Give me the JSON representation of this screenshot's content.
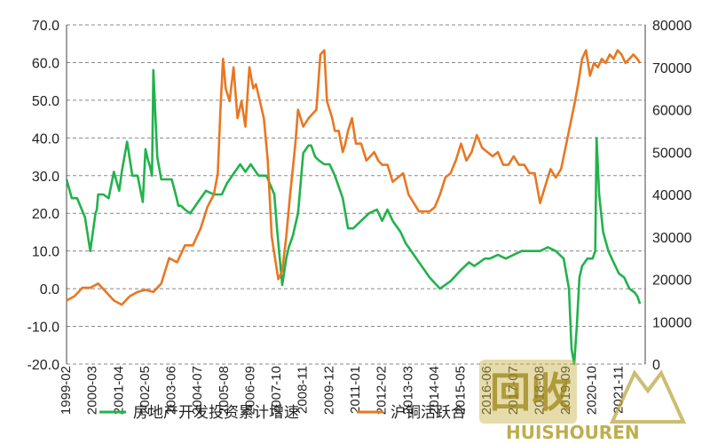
{
  "chart_data": {
    "type": "line",
    "title": "",
    "grid": true,
    "legend_position": "bottom",
    "x_categories": [
      "1999-02",
      "2000-03",
      "2001-04",
      "2002-05",
      "2003-06",
      "2004-07",
      "2005-08",
      "2006-09",
      "2007-10",
      "2008-11",
      "2009-12",
      "2011-01",
      "2012-02",
      "2013-03",
      "2014-04",
      "2015-05",
      "2016-06",
      "2017-07",
      "2018-08",
      "2019-09",
      "2020-10",
      "2021-11"
    ],
    "y_left": {
      "min": -20,
      "max": 70,
      "ticks": [
        "-20.0",
        "-10.0",
        "0.0",
        "10.0",
        "20.0",
        "30.0",
        "40.0",
        "50.0",
        "60.0",
        "70.0"
      ]
    },
    "y_right": {
      "min": 0,
      "max": 80000,
      "ticks": [
        "0",
        "10000",
        "20000",
        "30000",
        "40000",
        "50000",
        "60000",
        "70000",
        "80000"
      ]
    },
    "series": [
      {
        "name": "房地产开发投资累计增速",
        "axis": "left",
        "color": "#22b24c",
        "x": [
          0,
          0.2,
          0.4,
          0.7,
          0.9,
          1.1,
          1.15,
          1.2,
          1.4,
          1.6,
          1.8,
          2.0,
          2.1,
          2.3,
          2.5,
          2.7,
          2.9,
          3.0,
          3.1,
          3.15,
          3.25,
          3.3,
          3.45,
          3.6,
          3.8,
          4.0,
          4.15,
          4.25,
          4.35,
          4.5,
          4.7,
          4.9,
          5.1,
          5.3,
          5.6,
          5.9,
          6.1,
          6.3,
          6.6,
          6.8,
          7.0,
          7.3,
          7.6,
          7.9,
          8.0,
          8.2,
          8.35,
          8.45,
          8.6,
          8.8,
          9.0,
          9.2,
          9.3,
          9.45,
          9.6,
          9.8,
          10.0,
          10.2,
          10.5,
          10.7,
          10.9,
          11.2,
          11.5,
          11.8,
          12.0,
          12.2,
          12.4,
          12.7,
          12.9,
          13.0,
          13.2,
          13.5,
          13.8,
          14.2,
          14.6,
          15.0,
          15.3,
          15.5,
          15.7,
          15.9,
          16.1,
          16.4,
          16.7,
          17.0,
          17.3,
          17.6,
          18.0,
          18.3,
          18.6,
          18.9,
          19.1,
          19.2,
          19.3,
          19.4,
          19.5,
          19.6,
          19.8,
          20.0,
          20.1,
          20.15,
          20.25,
          20.4,
          20.6,
          20.8,
          21.0,
          21.2,
          21.4,
          21.6,
          21.7,
          21.8
        ],
        "values": [
          29,
          24,
          24,
          19,
          10,
          20,
          21,
          25,
          25,
          24,
          31,
          26,
          31,
          39,
          30,
          30,
          23,
          37,
          34,
          33,
          30,
          58,
          35,
          29,
          29,
          29,
          25,
          22,
          22,
          21,
          20,
          22,
          24,
          26,
          25,
          25,
          28,
          30,
          33,
          31,
          33,
          30,
          30,
          25,
          16,
          1,
          8,
          11,
          14,
          20,
          36,
          38,
          38,
          35,
          34,
          33,
          33,
          30,
          24,
          16,
          16,
          18,
          20,
          21,
          18,
          21,
          18,
          15,
          12,
          11,
          9,
          6,
          3,
          0,
          2,
          5,
          7,
          6,
          7,
          8,
          8,
          9,
          8,
          9,
          10,
          10,
          10,
          11,
          10,
          8,
          0,
          -16,
          -20,
          -10,
          3,
          6,
          8,
          8,
          10,
          40,
          25,
          15,
          10,
          7,
          4,
          3,
          0,
          -1,
          -2,
          -4
        ],
        "values_scale": "left"
      },
      {
        "name": "沪铜活跃合约收盘价（右轴）",
        "axis": "right",
        "color": "#e87722",
        "x": [
          0,
          0.3,
          0.6,
          0.9,
          1.2,
          1.5,
          1.8,
          2.1,
          2.4,
          2.7,
          3.0,
          3.3,
          3.6,
          3.9,
          4.2,
          4.5,
          4.8,
          5.1,
          5.35,
          5.6,
          5.75,
          5.85,
          5.95,
          6.05,
          6.2,
          6.35,
          6.5,
          6.65,
          6.8,
          6.95,
          7.1,
          7.2,
          7.35,
          7.5,
          7.65,
          7.8,
          7.95,
          8.05,
          8.2,
          8.35,
          8.5,
          8.6,
          8.7,
          8.8,
          9.0,
          9.2,
          9.35,
          9.5,
          9.65,
          9.8,
          9.9,
          10.0,
          10.1,
          10.2,
          10.35,
          10.5,
          10.6,
          10.7,
          10.85,
          11.0,
          11.2,
          11.4,
          11.55,
          11.7,
          11.85,
          12.0,
          12.2,
          12.4,
          12.6,
          12.8,
          13.0,
          13.2,
          13.4,
          13.6,
          13.8,
          14.0,
          14.2,
          14.4,
          14.6,
          14.8,
          15.0,
          15.2,
          15.4,
          15.6,
          15.8,
          16.0,
          16.2,
          16.4,
          16.6,
          16.8,
          17.0,
          17.2,
          17.4,
          17.6,
          17.8,
          18.0,
          18.2,
          18.4,
          18.6,
          18.8,
          19.0,
          19.2,
          19.3,
          19.45,
          19.6,
          19.75,
          19.9,
          20.05,
          20.2,
          20.35,
          20.5,
          20.65,
          20.8,
          20.95,
          21.1,
          21.25,
          21.4,
          21.55,
          21.7,
          21.8
        ],
        "values": [
          15000,
          16000,
          18000,
          18000,
          19000,
          17000,
          15000,
          14000,
          16000,
          17000,
          17500,
          17000,
          19000,
          25000,
          24000,
          28000,
          28000,
          32000,
          37000,
          40000,
          45000,
          60000,
          72000,
          65000,
          62000,
          70000,
          58000,
          62000,
          56000,
          70000,
          65000,
          66000,
          62000,
          58000,
          48000,
          30000,
          24000,
          20000,
          22000,
          30000,
          40000,
          46000,
          52000,
          60000,
          56000,
          58000,
          59000,
          60000,
          73000,
          74000,
          62000,
          60000,
          58000,
          55000,
          55000,
          50000,
          52000,
          55000,
          58000,
          52000,
          52000,
          48000,
          49000,
          50000,
          48000,
          47000,
          47000,
          43000,
          44000,
          45000,
          40000,
          38000,
          36000,
          36000,
          36000,
          37000,
          40000,
          44000,
          45000,
          48000,
          52000,
          48000,
          50000,
          54000,
          51000,
          50000,
          49000,
          50000,
          47000,
          47000,
          49000,
          47000,
          47000,
          45000,
          45000,
          38000,
          42000,
          46000,
          44000,
          46000,
          52000,
          58000,
          61000,
          66000,
          72000,
          74000,
          68000,
          71000,
          70000,
          72000,
          71000,
          73000,
          72000,
          74000,
          73000,
          71000,
          72000,
          73000,
          72000,
          71000
        ],
        "values_scale": "right"
      }
    ]
  },
  "legend": {
    "items": [
      {
        "label": "房地产开发投资累计增速",
        "color": "#22b24c"
      },
      {
        "label": "沪铜活跃合",
        "color": "#e87722"
      }
    ]
  },
  "watermark": {
    "logo_text": "回收",
    "brand": "HUISHOUREN"
  }
}
